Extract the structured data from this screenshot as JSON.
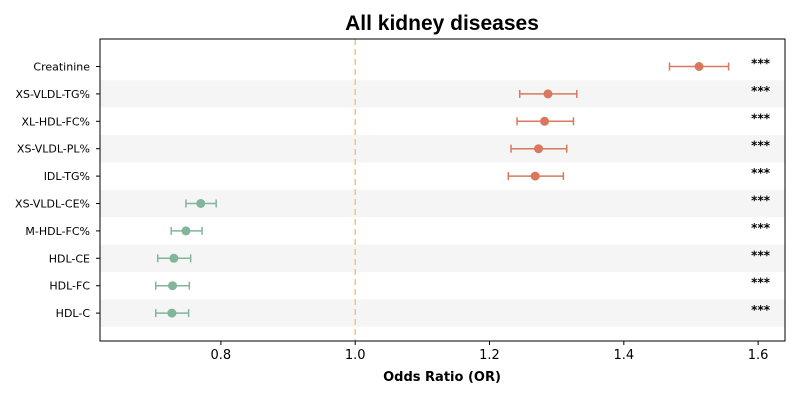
{
  "chart_data": {
    "type": "forest",
    "title": "All kidney diseases",
    "xlabel": "Odds Ratio (OR)",
    "ylabel": "",
    "xlim": [
      0.62,
      1.64
    ],
    "xticks": [
      0.8,
      1.0,
      1.2,
      1.4,
      1.6
    ],
    "xtick_labels": [
      "0.8",
      "1.0",
      "1.2",
      "1.4",
      "1.6"
    ],
    "reference_line": 1.0,
    "grid": false,
    "colors": {
      "increased": "#d9785f",
      "decreased": "#83b59a",
      "reference": "#f3c47e",
      "band": "#f5f5f5"
    },
    "rows": [
      {
        "label": "Creatinine",
        "or": 1.512,
        "lo": 1.468,
        "hi": 1.556,
        "sig": "***"
      },
      {
        "label": "XS-VLDL-TG%",
        "or": 1.287,
        "lo": 1.245,
        "hi": 1.33,
        "sig": "***"
      },
      {
        "label": "XL-HDL-FC%",
        "or": 1.282,
        "lo": 1.241,
        "hi": 1.325,
        "sig": "***"
      },
      {
        "label": "XS-VLDL-PL%",
        "or": 1.273,
        "lo": 1.232,
        "hi": 1.315,
        "sig": "***"
      },
      {
        "label": "IDL-TG%",
        "or": 1.268,
        "lo": 1.228,
        "hi": 1.31,
        "sig": "***"
      },
      {
        "label": "XS-VLDL-CE%",
        "or": 0.77,
        "lo": 0.748,
        "hi": 0.793,
        "sig": "***"
      },
      {
        "label": "M-HDL-FC%",
        "or": 0.748,
        "lo": 0.726,
        "hi": 0.772,
        "sig": "***"
      },
      {
        "label": "HDL-CE",
        "or": 0.73,
        "lo": 0.706,
        "hi": 0.755,
        "sig": "***"
      },
      {
        "label": "HDL-FC",
        "or": 0.728,
        "lo": 0.703,
        "hi": 0.753,
        "sig": "***"
      },
      {
        "label": "HDL-C",
        "or": 0.727,
        "lo": 0.703,
        "hi": 0.752,
        "sig": "***"
      }
    ]
  }
}
